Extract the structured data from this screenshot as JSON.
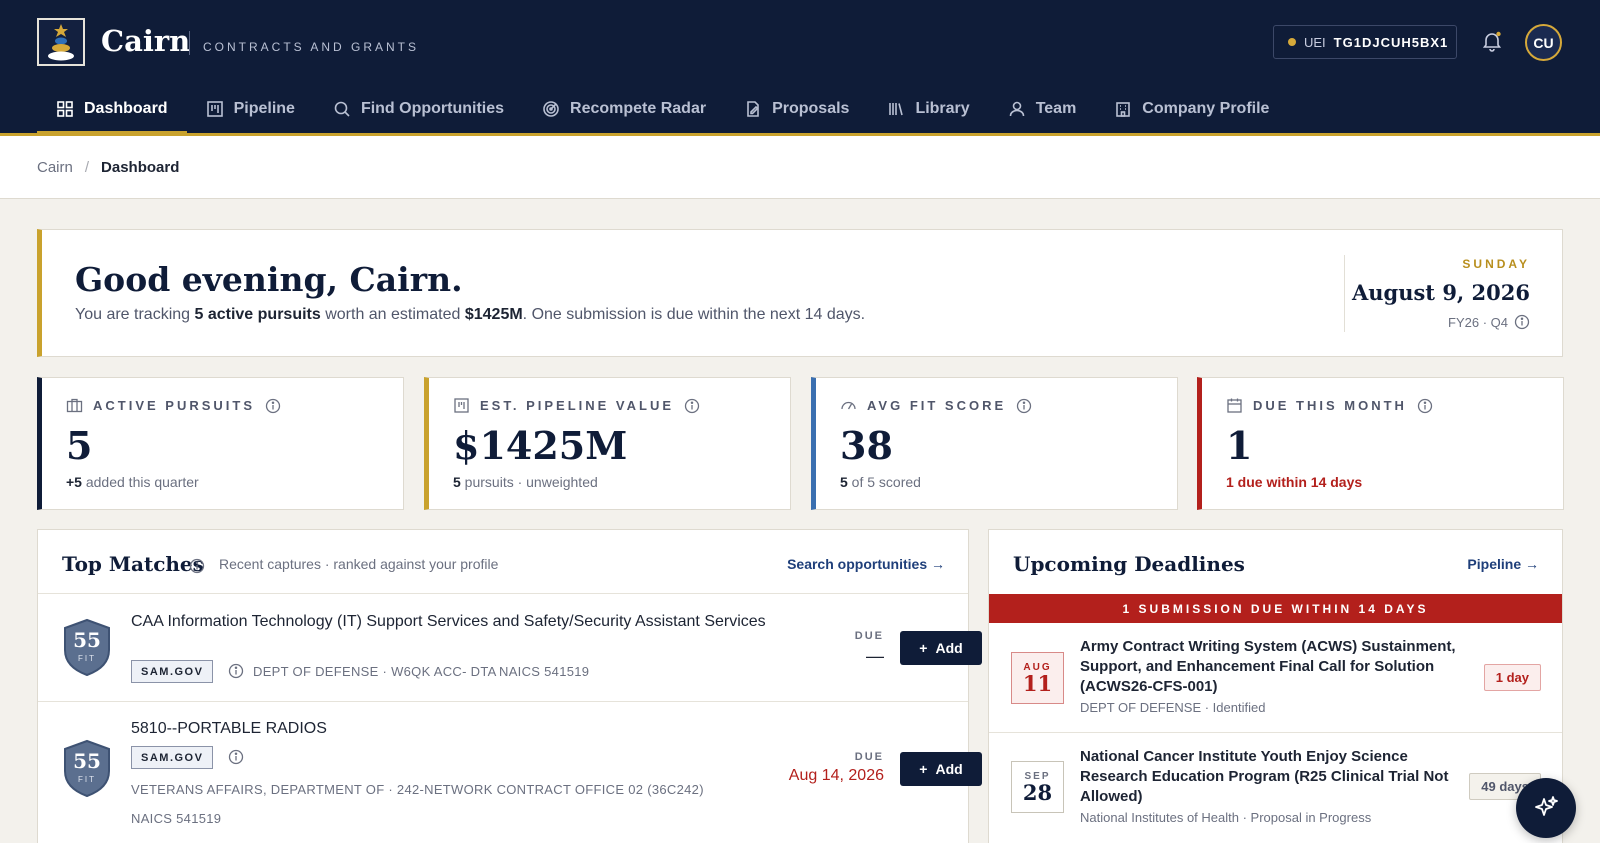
{
  "brand": {
    "name": "Cairn",
    "tagline": "CONTRACTS AND GRANTS",
    "logo_icon": "cairn-stones-icon"
  },
  "header": {
    "uei_label": "UEI",
    "uei_value": "TG1DJCUH5BX1",
    "avatar_initials": "CU"
  },
  "nav": [
    {
      "label": "Dashboard",
      "icon": "grid-icon",
      "active": true
    },
    {
      "label": "Pipeline",
      "icon": "kanban-icon"
    },
    {
      "label": "Find Opportunities",
      "icon": "search-icon"
    },
    {
      "label": "Recompete Radar",
      "icon": "radar-icon"
    },
    {
      "label": "Proposals",
      "icon": "document-edit-icon"
    },
    {
      "label": "Library",
      "icon": "books-icon"
    },
    {
      "label": "Team",
      "icon": "users-icon"
    },
    {
      "label": "Company Profile",
      "icon": "building-icon"
    }
  ],
  "breadcrumb": {
    "root": "Cairn",
    "separator": "/",
    "current": "Dashboard"
  },
  "greeting": {
    "title": "Good evening, Cairn.",
    "lead": "You are tracking ",
    "pursuits": "5 active pursuits",
    "mid": " worth an estimated ",
    "value": "$1425M",
    "tail": ". One submission is due within the next 14 days.",
    "weekday": "SUNDAY",
    "date": "August 9, 2026",
    "fiscal": "FY26 · Q4"
  },
  "kpis": [
    {
      "label": "ACTIVE PURSUITS",
      "value": "5",
      "sub_strong": "+5",
      "sub": " added this quarter",
      "accent": "#0f1c38",
      "icon": "briefcase-icon"
    },
    {
      "label": "EST. PIPELINE VALUE",
      "value": "$1425M",
      "sub_strong": "5",
      "sub": " pursuits · unweighted",
      "accent": "#c9a22d",
      "icon": "kanban-icon"
    },
    {
      "label": "AVG FIT SCORE",
      "value": "38",
      "sub_strong": "5",
      "sub": " of 5 scored",
      "accent": "#3a6fb0",
      "icon": "gauge-icon"
    },
    {
      "label": "DUE THIS MONTH",
      "value": "1",
      "sub_strong": "1 due within 14 days",
      "sub": "",
      "accent": "#b3201c",
      "icon": "calendar-icon"
    }
  ],
  "top_matches": {
    "title": "Top Matches",
    "subtitle": "Recent captures · ranked against your profile",
    "link": "Search opportunities →",
    "items": [
      {
        "score": "55",
        "fit_label": "FIT",
        "title": "CAA Information Technology (IT) Support Services and Safety/Security Assistant Services",
        "source": "SAM.GOV",
        "agency": "DEPT OF DEFENSE · W6QK ACC- DTA",
        "naics": "NAICS 541519",
        "due_label": "DUE",
        "due_value": "—",
        "add_label": "Add"
      },
      {
        "score": "55",
        "fit_label": "FIT",
        "title": "5810--PORTABLE RADIOS",
        "source": "SAM.GOV",
        "agency": "VETERANS AFFAIRS, DEPARTMENT OF · 242-NETWORK CONTRACT OFFICE 02 (36C242)",
        "naics": "NAICS 541519",
        "due_label": "DUE",
        "due_value": "Aug 14, 2026",
        "add_label": "Add"
      }
    ]
  },
  "deadlines": {
    "title": "Upcoming Deadlines",
    "link": "Pipeline →",
    "alert": "1 SUBMISSION DUE WITHIN 14 DAYS",
    "items": [
      {
        "month": "AUG",
        "day": "11",
        "title": "Army Contract Writing System (ACWS) Sustainment, Support, and Enhancement Final Call for Solution (ACWS26-CFS-001)",
        "meta": "DEPT OF DEFENSE · Identified",
        "countdown": "1 day"
      },
      {
        "month": "SEP",
        "day": "28",
        "title": "National Cancer Institute Youth Enjoy Science Research Education Program (R25 Clinical Trial Not Allowed)",
        "meta": "National Institutes of Health · Proposal in Progress",
        "countdown": "49 days"
      }
    ]
  },
  "fab": {
    "icon": "sparkles-icon"
  }
}
